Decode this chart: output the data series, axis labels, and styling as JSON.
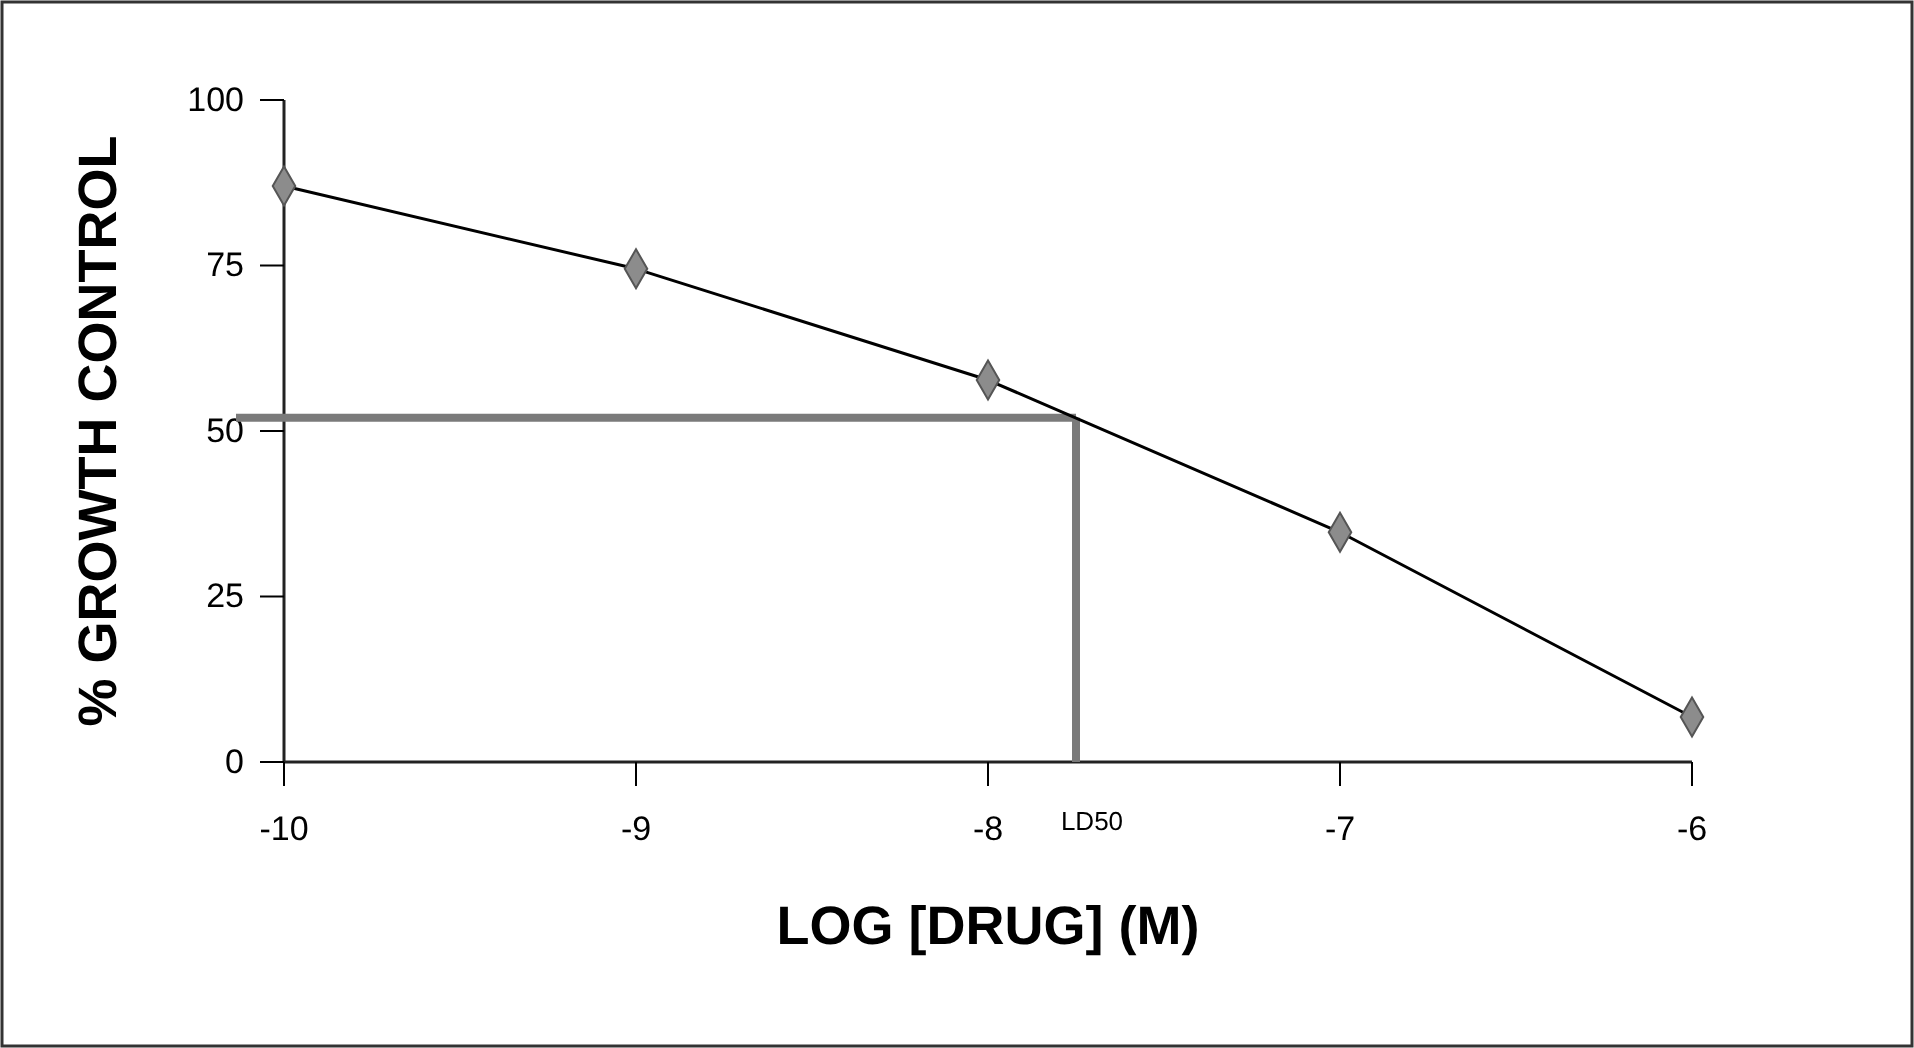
{
  "chart_data": {
    "type": "line",
    "xlabel": "LOG [DRUG] (M)",
    "ylabel": "% GROWTH CONTROL",
    "x": [
      -10,
      -9,
      -8,
      -7,
      -6
    ],
    "series": [
      {
        "color": "#000000",
        "values": [
          87,
          74.5,
          57.7,
          34.7,
          6.8
        ]
      }
    ],
    "xlim": [
      -10,
      -6
    ],
    "xticks": [
      -10,
      -9,
      -8,
      -7,
      -6
    ],
    "ylim": [
      0,
      100
    ],
    "yticks": [
      0,
      25,
      50,
      75,
      100
    ],
    "ref_lines": [
      {
        "axis": "y",
        "value": 52,
        "color": "#7a7a7a"
      },
      {
        "axis": "x",
        "value": -7.75,
        "label": "LD50",
        "color": "#7a7a7a"
      }
    ],
    "marker": "diamond",
    "line_style": "solid",
    "grid": false
  }
}
